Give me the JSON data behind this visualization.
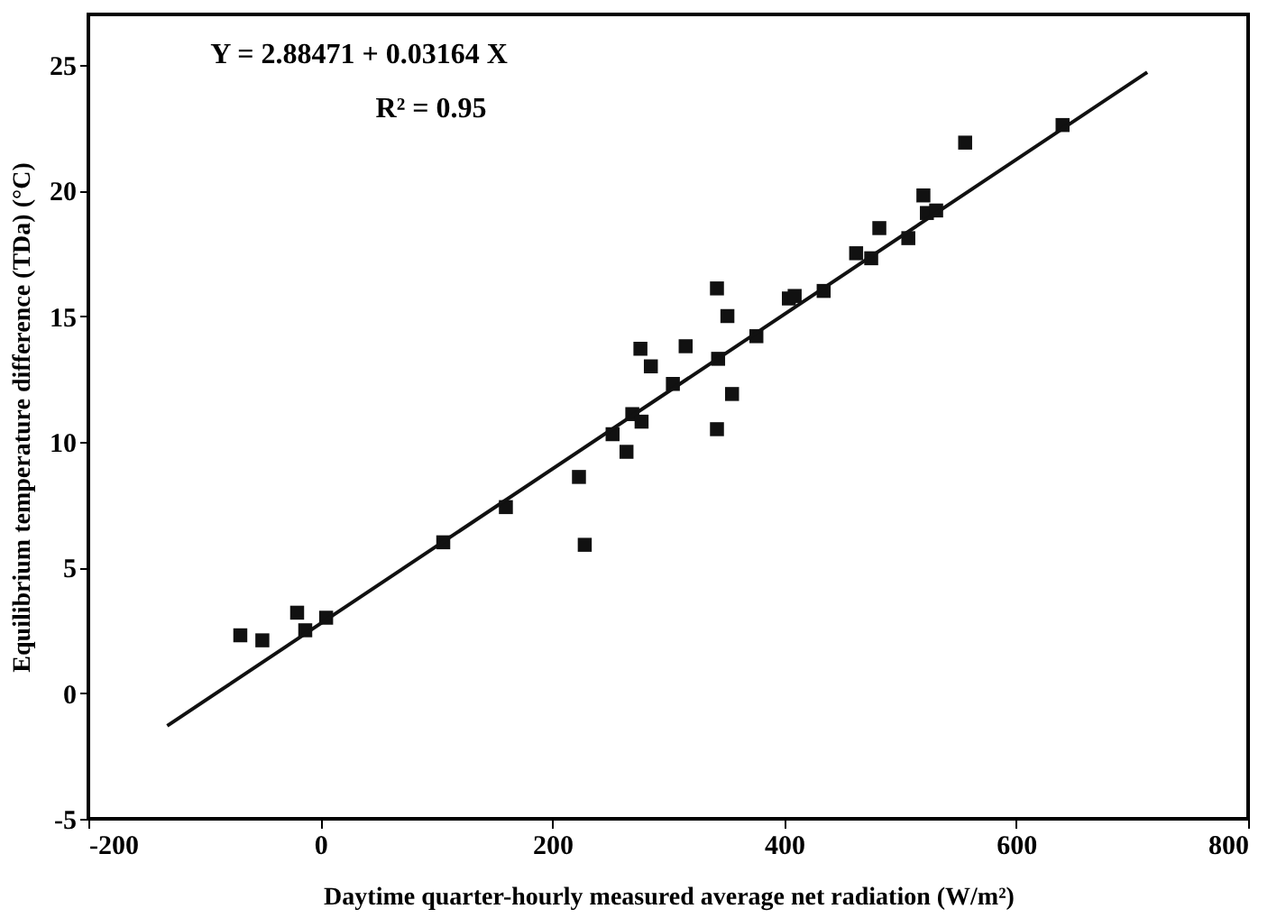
{
  "chart_data": {
    "type": "scatter",
    "xlabel": "Daytime quarter-hourly measured average net radiation (W/m²)",
    "ylabel": "Equilibrium temperature difference (TDa) (°C)",
    "annotations": [
      "Y = 2.88471 + 0.03164 X",
      "R² = 0.95"
    ],
    "xlim": [
      -200,
      800
    ],
    "xticks": [
      -200,
      0,
      200,
      400,
      600,
      800
    ],
    "ylim": [
      -5,
      27
    ],
    "yticks": [
      -5,
      0,
      5,
      10,
      15,
      20,
      25
    ],
    "grid": false,
    "marker": "square",
    "series": [
      {
        "color": "#111111",
        "x": [
          -69,
          -50,
          -20,
          -13,
          5,
          106,
          160,
          223,
          228,
          276,
          315,
          285,
          304,
          269,
          277,
          252,
          264,
          342,
          351,
          343,
          355,
          342,
          376,
          404,
          409,
          434,
          462,
          475,
          482,
          507,
          520,
          523,
          531,
          556,
          640
        ],
        "values": [
          2.3,
          2.1,
          3.2,
          2.5,
          3.0,
          6.0,
          7.4,
          8.6,
          5.9,
          13.7,
          13.8,
          13.0,
          12.3,
          11.1,
          10.8,
          10.3,
          9.6,
          16.1,
          15.0,
          13.3,
          11.9,
          10.5,
          14.2,
          15.7,
          15.8,
          16.0,
          17.5,
          17.3,
          18.5,
          18.1,
          19.8,
          19.1,
          19.2,
          21.9,
          22.6
        ]
      },
      {
        "type": "line",
        "color": "#111111",
        "line_style": "solid",
        "marker": "none",
        "x": [
          -132,
          713
        ],
        "values": [
          -1.3,
          24.7
        ]
      }
    ]
  }
}
